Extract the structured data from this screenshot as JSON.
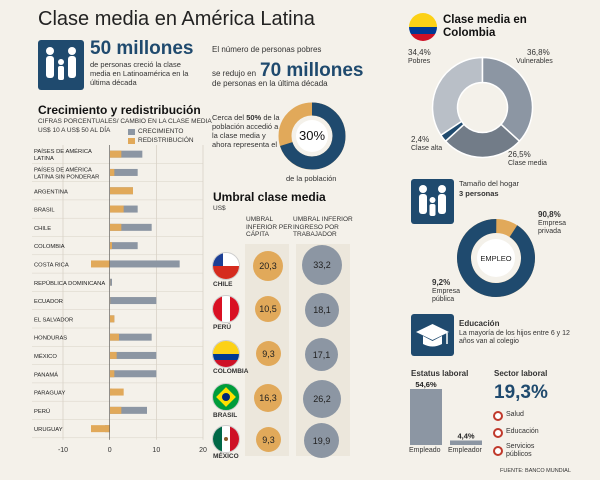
{
  "title": "Clase media en América Latina",
  "intro": {
    "num": "50 millones",
    "text": "de personas creció la clase media en Latinoamérica en la última década",
    "poor_text_1": "El número de personas pobres",
    "poor_text_2": "se redujo en",
    "poor_num": "70 millones",
    "poor_text_3": "de personas en la última década"
  },
  "growth": {
    "title": "Crecimiento y redistribución",
    "subtitle": "CIFRAS PORCENTUALES/ CAMBIO EN LA CLASE MEDIA",
    "subtitle2": "US$ 10 A US$ 50 AL DÍA",
    "legend_growth": "CRECIMIENTO",
    "legend_redis": "REDISTRIBUCIÓN"
  },
  "half": {
    "text_a": "Cerca del",
    "text_b": "50%",
    "text_c": "de la población accedió a la clase media y ahora representa el",
    "pct": "30%",
    "caption": "de la población"
  },
  "umbral": {
    "title": "Umbral clase media",
    "unit": "US$",
    "col1": "UMBRAL INFERIOR PER CÁPITA",
    "col2": "UMBRAL INFERIOR INGRESO POR TRABAJADOR",
    "rows": [
      {
        "country": "CHILE",
        "v1": "20,3",
        "v2": "33,2"
      },
      {
        "country": "PERÚ",
        "v1": "10,5",
        "v2": "18,1"
      },
      {
        "country": "COLOMBIA",
        "v1": "9,3",
        "v2": "17,1"
      },
      {
        "country": "BRASIL",
        "v1": "16,3",
        "v2": "26,2"
      },
      {
        "country": "MÉXICO",
        "v1": "9,3",
        "v2": "19,9"
      }
    ]
  },
  "colombia": {
    "title": "Clase media en Colombia",
    "labels": {
      "pobres_pct": "34,4%",
      "pobres": "Pobres",
      "vuln_pct": "36,8%",
      "vuln": "Vulnerables",
      "alta_pct": "2,4%",
      "alta": "Clase alta",
      "media_pct": "26,5%",
      "media": "Clase media"
    },
    "household_text": "Tamaño del hogar",
    "household_num": "3 personas",
    "empleo": "EMPLEO",
    "priv_pct": "90,8%",
    "priv": "Empresa privada",
    "pub_pct": "9,2%",
    "pub": "Empresa pública",
    "edu_title": "Educación",
    "edu_text": "La mayoría de los hijos entre 6 y 12 años van al colegio",
    "estatus_title": "Estatus laboral",
    "emp_pct": "54,6%",
    "emp": "Empleado",
    "empr_pct": "4,4%",
    "empr": "Empleador",
    "sector_title": "Sector laboral",
    "sector_pct": "19,3%",
    "sectors": [
      "Salud",
      "Educación",
      "Servicios públicos"
    ]
  },
  "source": "FUENTE: BANCO MUNDIAL",
  "colors": {
    "navy": "#1f4a6e",
    "gray": "#8c96a3",
    "orange": "#e1a95a",
    "light_gray": "#b9bfc7",
    "bg": "#f4f1ea"
  },
  "chart_data": [
    {
      "type": "bar",
      "title": "Crecimiento y redistribución",
      "orientation": "horizontal",
      "categories": [
        "PAÍSES DE AMÉRICA LATINA",
        "PAÍSES DE AMÉRICA LATINA SIN PONDERAR",
        "ARGENTINA",
        "BRASIL",
        "CHILE",
        "COLOMBIA",
        "COSTA RICA",
        "REPÚBLICA DOMINICANA",
        "ECUADOR",
        "EL SALVADOR",
        "HONDURAS",
        "MÉXICO",
        "PANAMÁ",
        "PARAGUAY",
        "PERÚ",
        "URUGUAY"
      ],
      "series": [
        {
          "name": "CRECIMIENTO",
          "values": [
            7,
            6,
            5,
            6,
            9,
            6,
            15,
            0.5,
            10,
            1,
            9,
            10,
            10,
            0.5,
            8,
            -1
          ]
        },
        {
          "name": "REDISTRIBUCIÓN",
          "values": [
            2.5,
            1,
            5,
            3,
            2.5,
            0.5,
            -4,
            0,
            0,
            1,
            2,
            1.5,
            1,
            3,
            2.5,
            -4
          ]
        }
      ],
      "xlim": [
        -10,
        20
      ],
      "xticks": [
        -10,
        0,
        10,
        20
      ]
    },
    {
      "type": "pie",
      "title": "Clase media en Colombia",
      "categories": [
        "Pobres",
        "Vulnerables",
        "Clase alta",
        "Clase media"
      ],
      "values": [
        34.4,
        36.8,
        2.4,
        26.5
      ]
    },
    {
      "type": "bar",
      "title": "Estatus laboral",
      "categories": [
        "Empleado",
        "Empleador"
      ],
      "values": [
        54.6,
        4.4
      ]
    }
  ]
}
